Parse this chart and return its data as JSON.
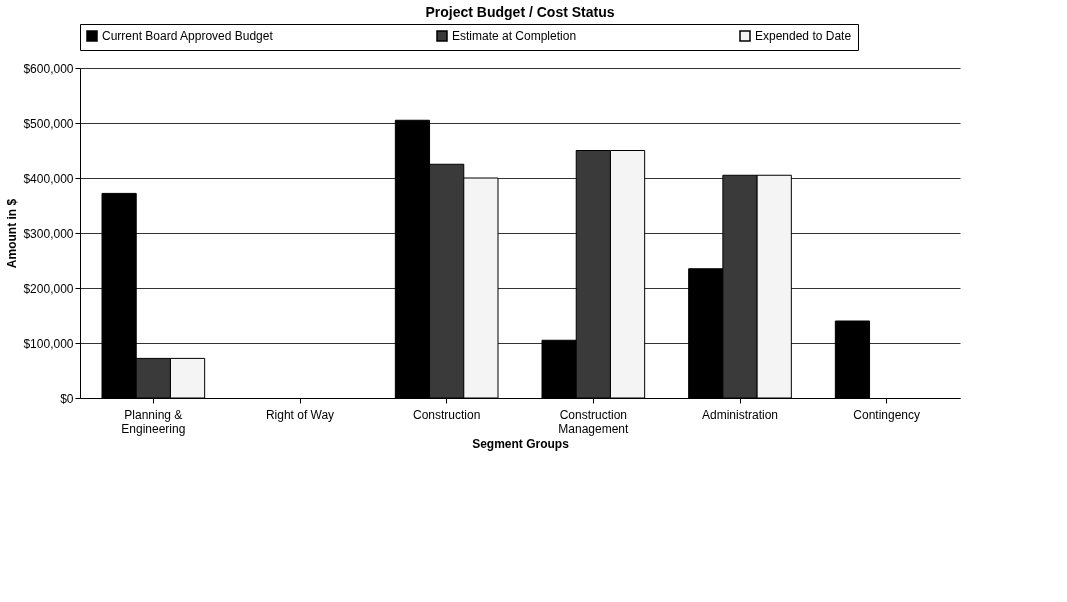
{
  "chart_data": {
    "type": "bar",
    "title": "Project Budget / Cost Status",
    "xlabel": "Segment Groups",
    "ylabel": "Amount in $",
    "categories": [
      "Planning & Engineering",
      "Right of Way",
      "Construction",
      "Construction Management",
      "Administration",
      "Contingency"
    ],
    "series": [
      {
        "name": "Current Board Approved Budget",
        "color": "#000000",
        "values": [
          372000,
          0,
          505000,
          105000,
          235000,
          140000
        ]
      },
      {
        "name": "Estimate at Completion",
        "color": "#3a3a3a",
        "values": [
          72000,
          0,
          425000,
          450000,
          405000,
          0
        ]
      },
      {
        "name": "Expended to Date",
        "color": "#f4f4f4",
        "values": [
          72000,
          0,
          400000,
          450000,
          405000,
          0
        ]
      }
    ],
    "ylim": [
      0,
      600000
    ],
    "yticks": [
      {
        "value": 0,
        "label": "$0"
      },
      {
        "value": 100000,
        "label": "$100,000"
      },
      {
        "value": 200000,
        "label": "$200,000"
      },
      {
        "value": 300000,
        "label": "$300,000"
      },
      {
        "value": 400000,
        "label": "$400,000"
      },
      {
        "value": 500000,
        "label": "$500,000"
      },
      {
        "value": 600000,
        "label": "$600,000"
      }
    ],
    "grid": "y",
    "legend": "top"
  }
}
